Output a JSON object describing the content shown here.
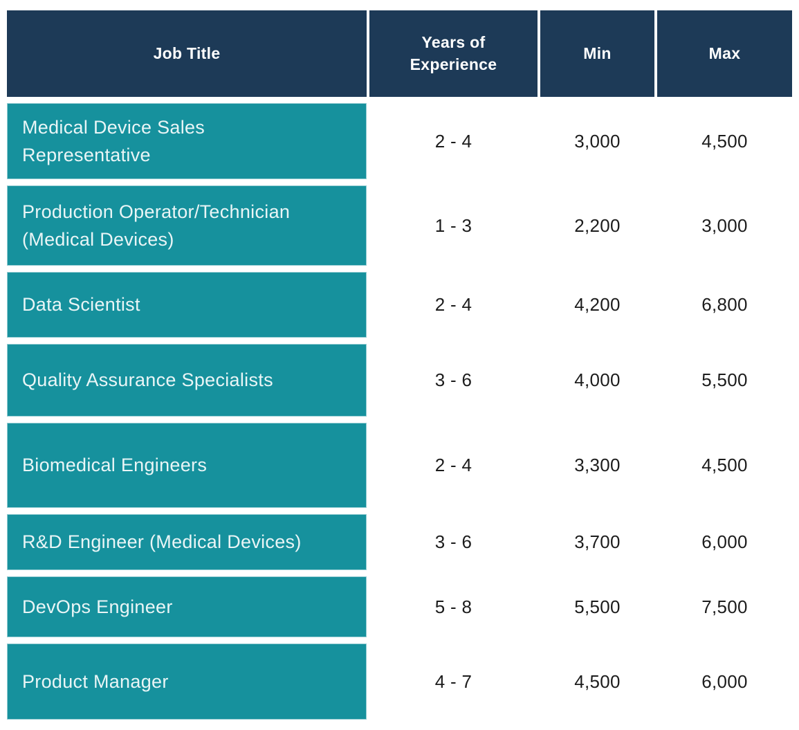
{
  "table": {
    "header": {
      "job_title": "Job Title",
      "years": "Years of Experience",
      "min": "Min",
      "max": "Max"
    },
    "rows": [
      {
        "job_title": "Medical Device Sales Representative",
        "years": "2 - 4",
        "min": "3,000",
        "max": "4,500"
      },
      {
        "job_title": "Production Operator/Technician (Medical Devices)",
        "years": "1 - 3",
        "min": "2,200",
        "max": "3,000"
      },
      {
        "job_title": "Data Scientist",
        "years": "2 - 4",
        "min": "4,200",
        "max": "6,800"
      },
      {
        "job_title": "Quality Assurance Specialists",
        "years": "3 - 6",
        "min": "4,000",
        "max": "5,500"
      },
      {
        "job_title": "Biomedical Engineers",
        "years": "2 - 4",
        "min": "3,300",
        "max": "4,500"
      },
      {
        "job_title": "R&D Engineer (Medical Devices)",
        "years": "3 - 6",
        "min": "3,700",
        "max": "6,000"
      },
      {
        "job_title": "DevOps Engineer",
        "years": "5 - 8",
        "min": "5,500",
        "max": "7,500"
      },
      {
        "job_title": "Product Manager",
        "years": "4 - 7",
        "min": "4,500",
        "max": "6,000"
      }
    ],
    "colors": {
      "header_bg": "#1d3a57",
      "header_text": "#ffffff",
      "job_cell_bg": "#16919d",
      "job_cell_text": "#e9f5f6",
      "value_text": "#1c1c1c",
      "separator": "#ffffff"
    }
  }
}
